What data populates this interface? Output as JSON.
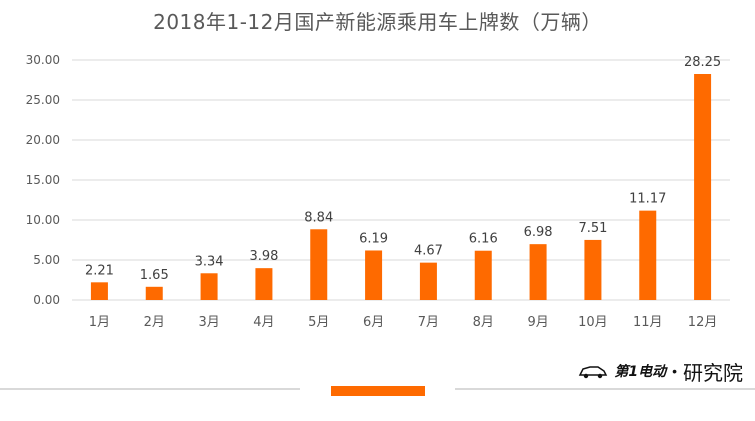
{
  "chart_data": {
    "type": "bar",
    "title": "2018年1-12月国产新能源乘用车上牌数（万辆）",
    "categories": [
      "1月",
      "2月",
      "3月",
      "4月",
      "5月",
      "6月",
      "7月",
      "8月",
      "9月",
      "10月",
      "11月",
      "12月"
    ],
    "values": [
      2.21,
      1.65,
      3.34,
      3.98,
      8.84,
      6.19,
      4.67,
      6.16,
      6.98,
      7.51,
      11.17,
      28.25
    ],
    "value_labels": [
      "2.21",
      "1.65",
      "3.34",
      "3.98",
      "8.84",
      "6.19",
      "4.67",
      "6.16",
      "6.98",
      "7.51",
      "11.17",
      "28.25"
    ],
    "ylim": [
      0,
      30
    ],
    "yticks": [
      "0.00",
      "5.00",
      "10.00",
      "15.00",
      "20.00",
      "25.00",
      "30.00"
    ],
    "grid": true,
    "bar_color": "#fe6a00"
  },
  "footer": {
    "brand_logo": "第1电动",
    "brand_separator": "•",
    "brand_text": "研究院",
    "accent_color": "#fe6a00"
  }
}
